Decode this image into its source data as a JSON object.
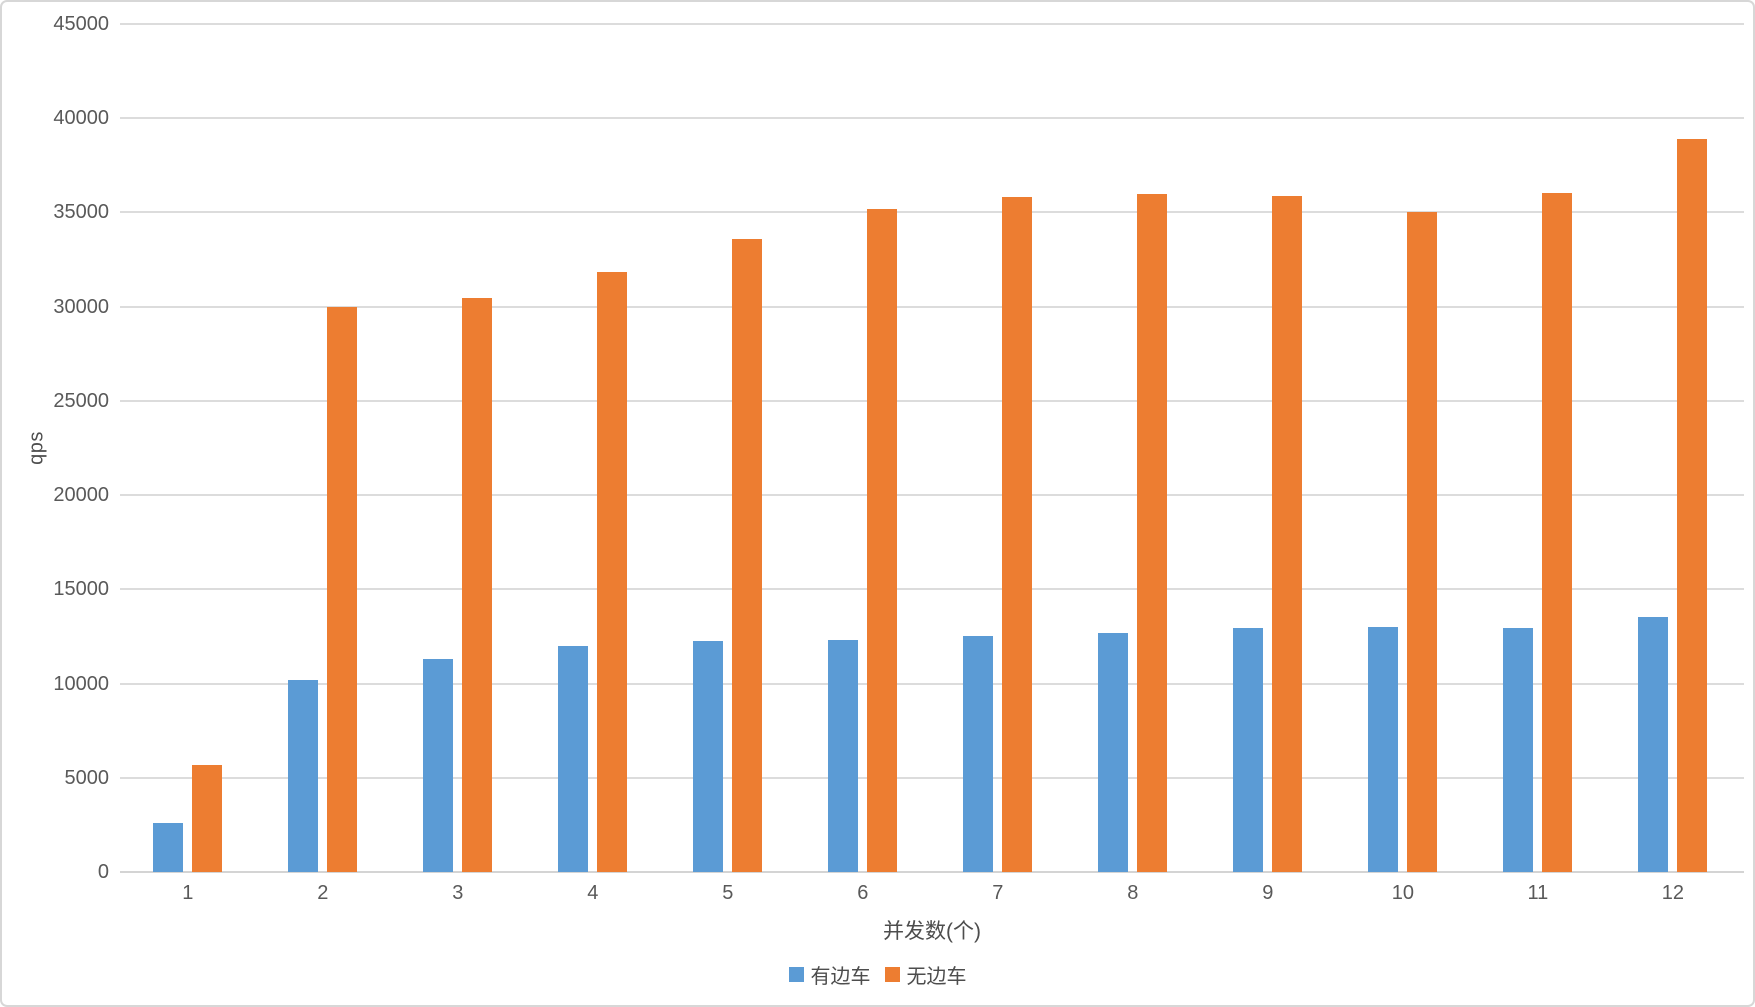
{
  "chart_data": {
    "type": "bar",
    "title": "",
    "categories": [
      "1",
      "2",
      "3",
      "4",
      "5",
      "6",
      "7",
      "8",
      "9",
      "10",
      "11",
      "12"
    ],
    "series": [
      {
        "name": "有边车",
        "color": "#5B9BD5",
        "values": [
          2600,
          10200,
          11300,
          12000,
          12250,
          12300,
          12550,
          12700,
          12950,
          13000,
          12950,
          13550
        ]
      },
      {
        "name": "无边车",
        "color": "#ED7D31",
        "values": [
          5700,
          30000,
          30450,
          31850,
          33600,
          35200,
          35800,
          36000,
          35850,
          35000,
          36050,
          38900
        ]
      }
    ],
    "xlabel": "并发数(个)",
    "ylabel": "qps",
    "ylim": [
      0,
      45000
    ],
    "yticks": [
      0,
      5000,
      10000,
      15000,
      20000,
      25000,
      30000,
      35000,
      40000,
      45000
    ],
    "grid": true,
    "legend_position": "bottom"
  },
  "colors": {
    "background": "#ffffff",
    "border": "#d7d7d7",
    "gridline": "#dcdcdc",
    "tick_text": "#595959",
    "title_text": "#4d4d4d"
  }
}
